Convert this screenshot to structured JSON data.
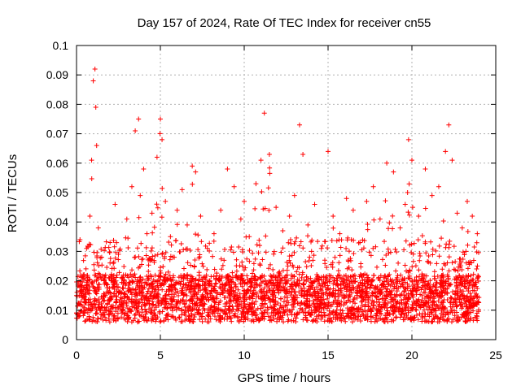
{
  "chart_data": {
    "type": "scatter",
    "title": "Day 157 of 2024, Rate Of TEC Index for receiver cn55",
    "xlabel": "GPS time / hours",
    "ylabel": "ROTI / TECUs",
    "xlim": [
      0,
      25
    ],
    "ylim": [
      0,
      0.1
    ],
    "x_ticks": [
      0,
      5,
      10,
      15,
      20,
      25
    ],
    "x_tick_labels": [
      "0",
      "5",
      "10",
      "15",
      "20",
      "25"
    ],
    "y_ticks": [
      0,
      0.01,
      0.02,
      0.03,
      0.04,
      0.05,
      0.06,
      0.07,
      0.08,
      0.09,
      0.1
    ],
    "y_tick_labels": [
      "0",
      "0.01",
      "0.02",
      "0.03",
      "0.04",
      "0.05",
      "0.06",
      "0.07",
      "0.08",
      "0.09",
      "0.1"
    ],
    "grid": true,
    "marker": "+",
    "series": [
      {
        "name": "ROTI",
        "color": "#ff0000",
        "x": [
          0.0,
          0.2,
          0.4,
          0.6,
          0.8,
          0.9,
          1.0,
          1.1,
          1.15,
          1.2,
          1.3,
          1.5,
          1.7,
          2.0,
          2.3,
          2.5,
          2.8,
          3.0,
          3.3,
          3.5,
          3.7,
          3.8,
          4.0,
          4.2,
          4.5,
          4.8,
          5.0,
          5.1,
          5.3,
          5.6,
          6.0,
          6.3,
          6.6,
          6.9,
          7.1,
          7.4,
          7.8,
          8.2,
          8.6,
          9.0,
          9.4,
          9.8,
          10.0,
          10.3,
          10.7,
          11.0,
          11.2,
          11.5,
          11.9,
          12.3,
          12.7,
          13.0,
          13.3,
          13.5,
          13.8,
          14.2,
          14.6,
          15.0,
          15.3,
          15.7,
          16.1,
          16.5,
          16.9,
          17.3,
          17.7,
          18.1,
          18.5,
          18.9,
          19.3,
          19.6,
          19.8,
          20.0,
          20.4,
          20.8,
          21.2,
          21.6,
          22.0,
          22.2,
          22.4,
          22.7,
          23.0,
          23.3,
          23.6,
          23.9
        ],
        "y": [
          0.015,
          0.018,
          0.022,
          0.031,
          0.042,
          0.061,
          0.088,
          0.092,
          0.079,
          0.066,
          0.038,
          0.028,
          0.021,
          0.033,
          0.046,
          0.029,
          0.022,
          0.041,
          0.052,
          0.071,
          0.075,
          0.049,
          0.058,
          0.036,
          0.043,
          0.062,
          0.075,
          0.068,
          0.047,
          0.035,
          0.044,
          0.051,
          0.039,
          0.059,
          0.057,
          0.042,
          0.031,
          0.036,
          0.044,
          0.058,
          0.052,
          0.041,
          0.047,
          0.035,
          0.053,
          0.061,
          0.077,
          0.063,
          0.045,
          0.037,
          0.042,
          0.049,
          0.073,
          0.063,
          0.039,
          0.046,
          0.031,
          0.064,
          0.042,
          0.036,
          0.048,
          0.044,
          0.033,
          0.047,
          0.052,
          0.041,
          0.06,
          0.057,
          0.038,
          0.046,
          0.068,
          0.061,
          0.042,
          0.058,
          0.049,
          0.052,
          0.064,
          0.073,
          0.061,
          0.043,
          0.038,
          0.047,
          0.042,
          0.036
        ]
      }
    ]
  }
}
